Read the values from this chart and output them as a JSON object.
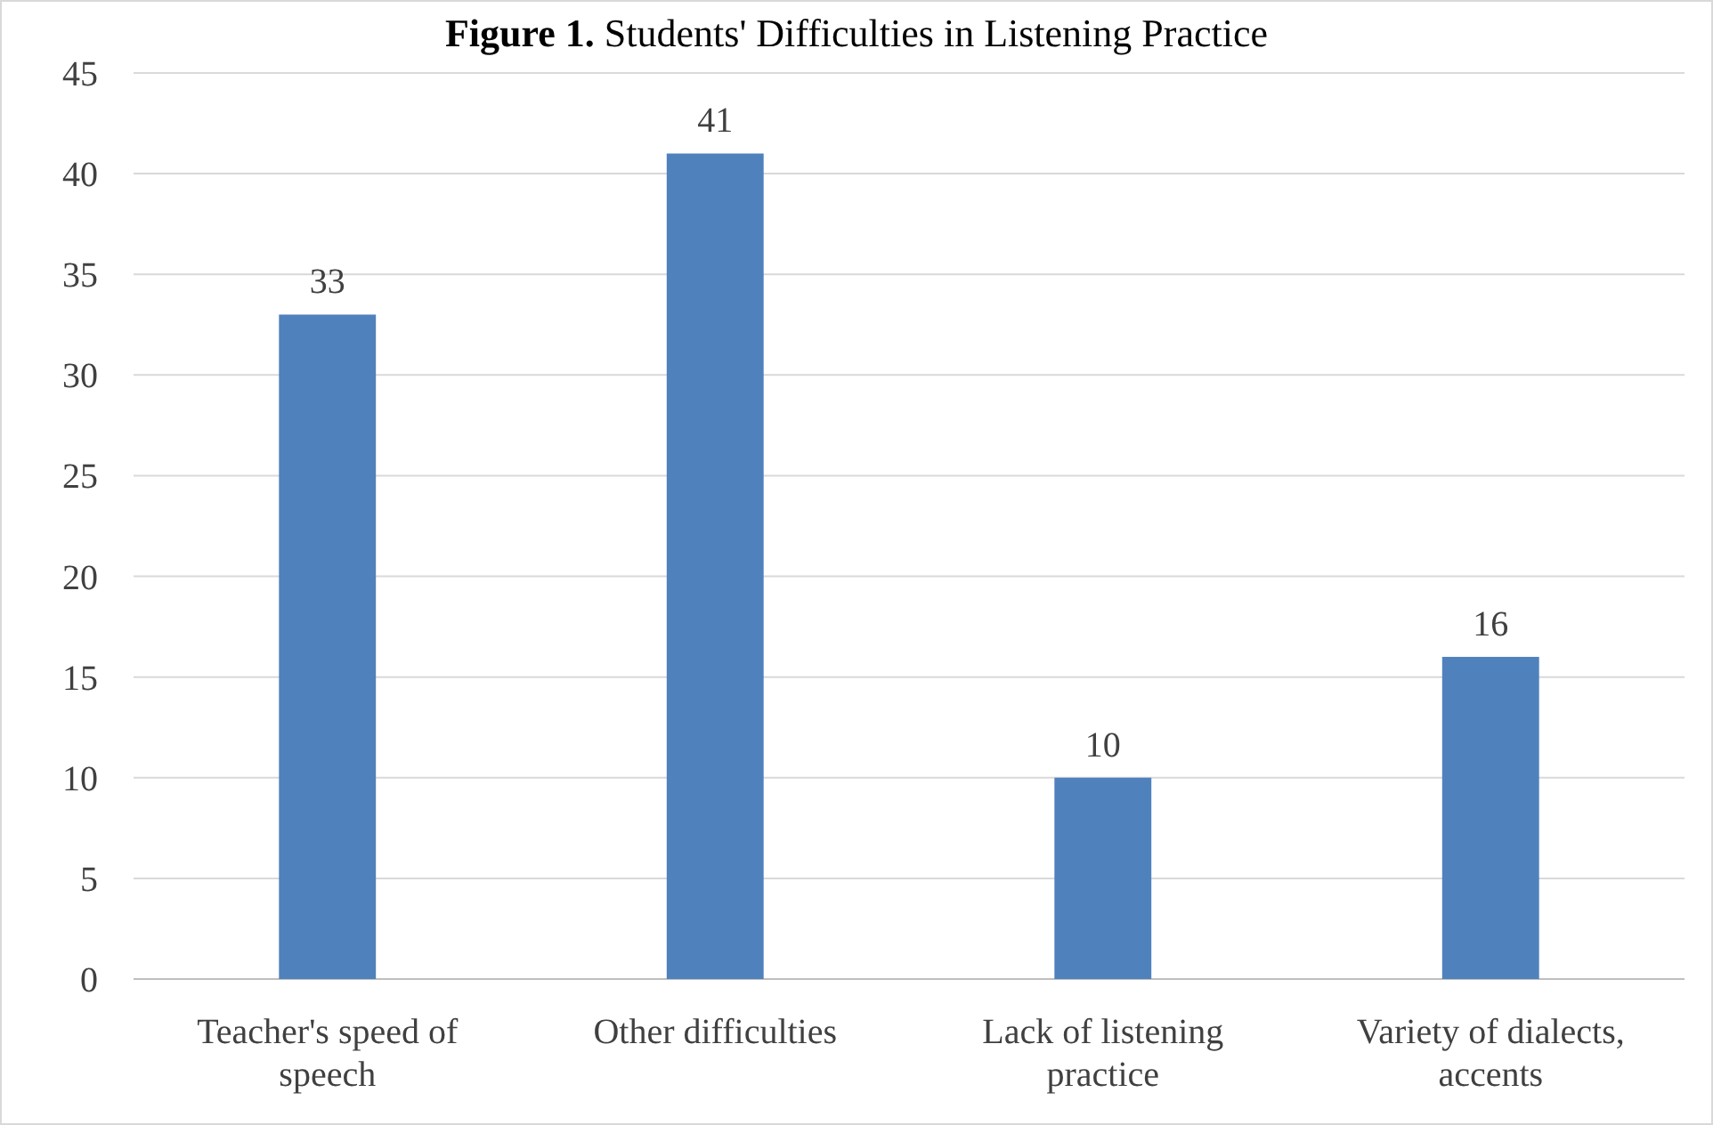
{
  "chart_data": {
    "type": "bar",
    "title": "Figure 1. Students' Difficulties in Listening Practice",
    "categories": [
      "Teacher's speed of speech",
      "Other difficulties",
      "Lack of listening practice",
      "Variety of dialects, accents"
    ],
    "values": [
      33,
      41,
      10,
      16
    ],
    "color": "#4f81bd",
    "ylim": [
      0,
      45
    ],
    "yticks": [
      0,
      5,
      10,
      15,
      20,
      25,
      30,
      35,
      40,
      45
    ],
    "grid": "y",
    "data_labels": true
  }
}
